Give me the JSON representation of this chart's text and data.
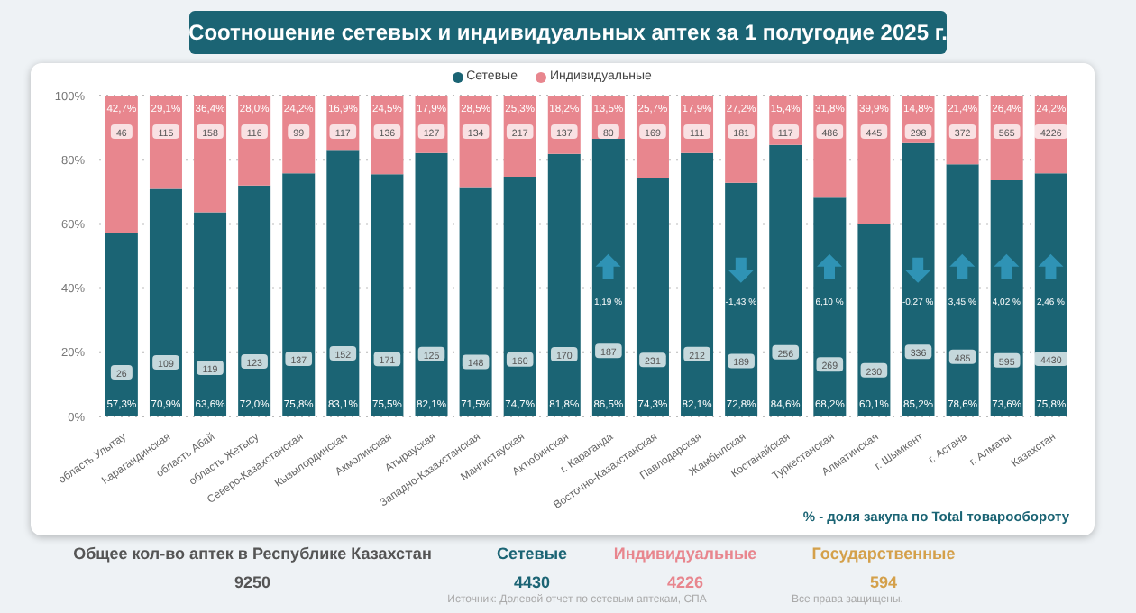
{
  "chart_data": {
    "type": "bar",
    "title": "Соотношение сетевых и индивидуальных аптек за 1 полугодие 2025 г.",
    "stacked": true,
    "legend": "top",
    "grid": "y",
    "ylim": [
      0,
      100
    ],
    "yticks": [
      {
        "value": 0,
        "label": "0%"
      },
      {
        "value": 20,
        "label": "20%"
      },
      {
        "value": 40,
        "label": "40%"
      },
      {
        "value": 60,
        "label": "60%"
      },
      {
        "value": 80,
        "label": "80%"
      },
      {
        "value": 100,
        "label": "100%"
      }
    ],
    "categories": [
      "область Улытау",
      "Карагандинская",
      "область Абай",
      "область Жетысу",
      "Северо-Казахстанская",
      "Кызылординская",
      "Акмолинская",
      "Атырауская",
      "Западно-Казахстанская",
      "Мангистауская",
      "Актюбинская",
      "г. Караганда",
      "Восточно-Казахстанская",
      "Павлодарская",
      "Жамбылская",
      "Костанайская",
      "Туркестанская",
      "Алматинская",
      "г. Шымкент",
      "г. Астана",
      "г. Алматы",
      "Казахстан"
    ],
    "series": [
      {
        "name": "Сетевые",
        "color": "#1b6474",
        "values": [
          57.3,
          70.9,
          63.6,
          72.0,
          75.8,
          83.1,
          75.5,
          82.1,
          71.5,
          74.7,
          81.8,
          86.5,
          74.3,
          82.1,
          72.8,
          84.6,
          68.2,
          60.1,
          85.2,
          78.6,
          73.6,
          75.8
        ],
        "value_labels": [
          "57,3%",
          "70,9%",
          "63,6%",
          "72,0%",
          "75,8%",
          "83,1%",
          "75,5%",
          "82,1%",
          "71,5%",
          "74,7%",
          "81,8%",
          "86,5%",
          "74,3%",
          "82,1%",
          "72,8%",
          "84,6%",
          "68,2%",
          "60,1%",
          "85,2%",
          "78,6%",
          "73,6%",
          "75,8%"
        ]
      },
      {
        "name": "Индивидуальные",
        "color": "#e8868e",
        "values": [
          42.7,
          29.1,
          36.4,
          28.0,
          24.2,
          16.9,
          24.5,
          17.9,
          28.5,
          25.3,
          18.2,
          13.5,
          25.7,
          17.9,
          27.2,
          15.4,
          31.8,
          39.9,
          14.8,
          21.4,
          26.4,
          24.2
        ],
        "value_labels": [
          "42,7%",
          "29,1%",
          "36,4%",
          "28,0%",
          "24,2%",
          "16,9%",
          "24,5%",
          "17,9%",
          "28,5%",
          "25,3%",
          "18,2%",
          "13,5%",
          "25,7%",
          "17,9%",
          "27,2%",
          "15,4%",
          "31,8%",
          "39,9%",
          "14,8%",
          "21,4%",
          "26,4%",
          "24,2%"
        ]
      }
    ],
    "annotations": [
      "26",
      "109",
      "119",
      "123",
      "137",
      "152",
      "171",
      "125",
      "148",
      "160",
      "170",
      "187",
      "231",
      "212",
      "189",
      "256",
      "269",
      "230",
      "336",
      "485",
      "595",
      "4430",
      "46",
      "115",
      "158",
      "116",
      "99",
      "117",
      "136",
      "127",
      "134",
      "217",
      "137",
      "80",
      "169",
      "111",
      "181",
      "117",
      "486",
      "445",
      "298",
      "372",
      "565",
      "4226",
      "1,19 %",
      "-1,43 %",
      "6,10 %",
      "-0,27 %",
      "3,45 %",
      "4,02 %",
      "2,46 %",
      "% - доля закупа по Total товарообороту",
      "Общее кол-во аптек в Республике Казахстан",
      "9250",
      "Сетевые",
      "4430",
      "Индивидуальные",
      "4226",
      "Государственные",
      "594",
      "Источник: Долевой отчет по сетевым аптекам, СПА",
      "Все права защищены."
    ]
  }
}
